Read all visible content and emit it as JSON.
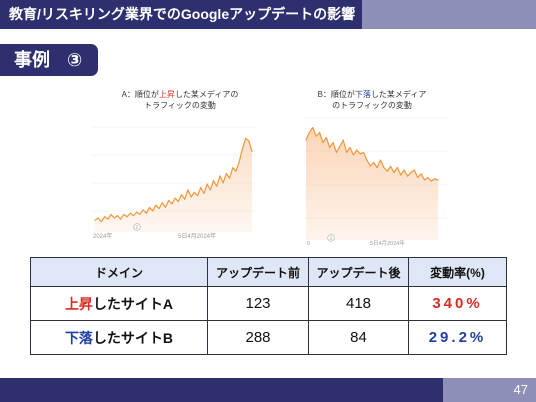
{
  "header": {
    "title": "教育/リスキリング業界でのGoogleアップデートの影響"
  },
  "section_label": {
    "text": "事例 ③"
  },
  "theme": {
    "primary": "#2d2f6e",
    "secondary": "#8d8fb7",
    "table_header_bg": "#dde7f5"
  },
  "chart_data": [
    {
      "type": "area",
      "title": {
        "prefix": "A：順位が",
        "highlight": "上昇",
        "suffix": "した某メディアの",
        "line2": "トラフィックの変動"
      },
      "x_tick_labels": [
        "2024年",
        "5日4月2024年"
      ],
      "annotation": "2",
      "series": [
        {
          "values": [
            10,
            12,
            9,
            13,
            11,
            15,
            12,
            14,
            11,
            15,
            13,
            16,
            14,
            17,
            15,
            19,
            16,
            21,
            18,
            23,
            20,
            25,
            21,
            27,
            24,
            29,
            26,
            32,
            28,
            36,
            30,
            34,
            31,
            38,
            33,
            41,
            36,
            44,
            39,
            48,
            42,
            50,
            46,
            55,
            52,
            60,
            71,
            80,
            78,
            69
          ]
        }
      ],
      "ylim": [
        0,
        100
      ],
      "grid": true,
      "line_color": "#f2963a",
      "fill_color": "#f8b987",
      "highlight_color": "#d62d24"
    },
    {
      "type": "area",
      "title": {
        "prefix": "B：順位が",
        "highlight": "下落",
        "suffix": "した某メディア",
        "line2": "のトラフィックの変動"
      },
      "x_tick_labels": [
        "0",
        "5日4月2024年"
      ],
      "annotation": "2",
      "series": [
        {
          "values": [
            80,
            86,
            90,
            83,
            86,
            78,
            82,
            74,
            78,
            70,
            75,
            80,
            70,
            74,
            68,
            72,
            69,
            70,
            64,
            59,
            62,
            58,
            64,
            58,
            55,
            59,
            54,
            58,
            52,
            56,
            51,
            54,
            56,
            50,
            53,
            48,
            50,
            47,
            49,
            48
          ]
        }
      ],
      "ylim": [
        0,
        100
      ],
      "grid": true,
      "line_color": "#f2963a",
      "fill_color": "#f8b987",
      "highlight_color": "#2140a0"
    }
  ],
  "table": {
    "columns": [
      "ドメイン",
      "アップデート前",
      "アップデート後",
      "変動率(%)"
    ],
    "rows": [
      {
        "domain_highlight": "上昇",
        "domain_suffix": "したサイトA",
        "before": "123",
        "after": "418",
        "change": "340%",
        "highlight_color": "#d62d24"
      },
      {
        "domain_highlight": "下落",
        "domain_suffix": "したサイトB",
        "before": "288",
        "after": "84",
        "change": "29.2%",
        "highlight_color": "#2140a0"
      }
    ]
  },
  "footer": {
    "page_number": "47"
  }
}
